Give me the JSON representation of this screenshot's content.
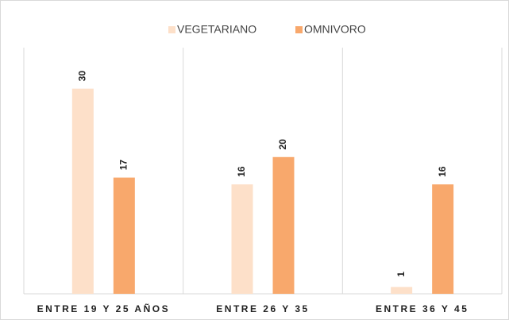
{
  "chart_data": {
    "type": "bar",
    "categories": [
      "ENTRE 19 Y 25 AÑOS",
      "ENTRE 26 Y 35",
      "ENTRE 36 Y 45"
    ],
    "series": [
      {
        "name": "VEGETARIANO",
        "color": "#fde0c9",
        "values": [
          30,
          16,
          1
        ]
      },
      {
        "name": "OMNIVORO",
        "color": "#f8a86c",
        "values": [
          17,
          20,
          16
        ]
      }
    ],
    "ylim": [
      0,
      36
    ],
    "legend": "top"
  }
}
